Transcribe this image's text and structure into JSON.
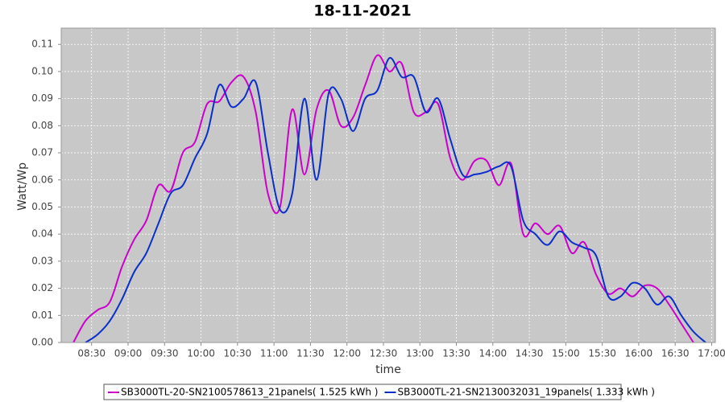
{
  "chart_data": {
    "type": "line",
    "title": "18-11-2021",
    "x_label": "time",
    "y_label": "Watt/Wp",
    "x": [
      "08:15",
      "08:25",
      "08:35",
      "08:45",
      "08:55",
      "09:05",
      "09:15",
      "09:25",
      "09:35",
      "09:45",
      "09:55",
      "10:05",
      "10:15",
      "10:25",
      "10:35",
      "10:45",
      "10:55",
      "11:05",
      "11:15",
      "11:25",
      "11:35",
      "11:45",
      "11:55",
      "12:05",
      "12:15",
      "12:25",
      "12:35",
      "12:45",
      "12:55",
      "13:05",
      "13:15",
      "13:25",
      "13:35",
      "13:45",
      "13:55",
      "14:05",
      "14:15",
      "14:25",
      "14:35",
      "14:45",
      "14:55",
      "15:05",
      "15:15",
      "15:25",
      "15:35",
      "15:45",
      "15:55",
      "16:05",
      "16:15",
      "16:25",
      "16:35",
      "16:45",
      "16:55"
    ],
    "series": [
      {
        "name": "SB3000TL-20-SN2100578613_21panels( 1.525 kWh )",
        "color": "#cc00cc",
        "values": [
          0,
          0.008,
          0.012,
          0.015,
          0.028,
          0.038,
          0.045,
          0.058,
          0.056,
          0.07,
          0.074,
          0.088,
          0.089,
          0.096,
          0.098,
          0.085,
          0.055,
          0.05,
          0.086,
          0.062,
          0.086,
          0.093,
          0.08,
          0.083,
          0.095,
          0.106,
          0.1,
          0.103,
          0.085,
          0.085,
          0.088,
          0.068,
          0.06,
          0.067,
          0.067,
          0.058,
          0.066,
          0.04,
          0.044,
          0.04,
          0.043,
          0.033,
          0.037,
          0.025,
          0.018,
          0.02,
          0.017,
          0.021,
          0.02,
          0.014,
          0.007,
          0,
          null
        ]
      },
      {
        "name": "SB3000TL-21-SN2130032031_19panels( 1.333 kWh )",
        "color": "#0a2ecc",
        "values": [
          null,
          0,
          0.003,
          0.008,
          0.016,
          0.026,
          0.033,
          0.044,
          0.055,
          0.058,
          0.068,
          0.077,
          0.095,
          0.087,
          0.09,
          0.096,
          0.07,
          0.049,
          0.055,
          0.09,
          0.06,
          0.092,
          0.09,
          0.078,
          0.09,
          0.093,
          0.105,
          0.098,
          0.098,
          0.085,
          0.09,
          0.075,
          0.062,
          0.062,
          0.063,
          0.065,
          0.065,
          0.045,
          0.04,
          0.036,
          0.041,
          0.037,
          0.035,
          0.032,
          0.017,
          0.017,
          0.022,
          0.02,
          0.014,
          0.017,
          0.01,
          0.004,
          0
        ]
      }
    ],
    "xlim": [
      "08:05",
      "17:03"
    ],
    "xticks": [
      "08:30",
      "09:00",
      "09:30",
      "10:00",
      "10:30",
      "11:00",
      "11:30",
      "12:00",
      "12:30",
      "13:00",
      "13:30",
      "14:00",
      "14:30",
      "15:00",
      "15:30",
      "16:00",
      "16:30",
      "17:00"
    ],
    "ylim": [
      0,
      0.116
    ],
    "yticks": [
      {
        "value": 0,
        "label": "0.00"
      },
      0.01,
      0.02,
      0.03,
      0.04,
      0.05,
      0.06,
      0.07,
      0.08,
      0.09,
      {
        "value": 0.1,
        "label": "0.10"
      },
      0.11
    ],
    "grid": true,
    "legend": "bottom"
  }
}
